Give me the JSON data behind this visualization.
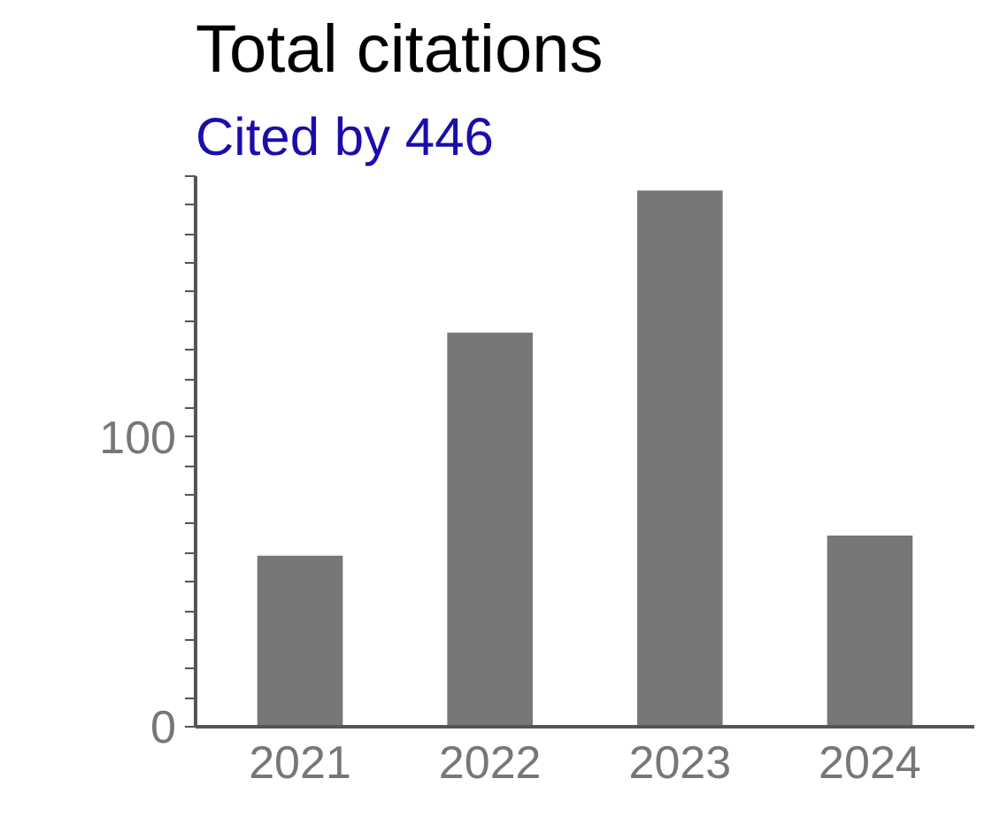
{
  "chart_data": {
    "type": "bar",
    "title": "Total citations",
    "subtitle": "Cited by 446",
    "categories": [
      "2021",
      "2022",
      "2023",
      "2024"
    ],
    "values": [
      59,
      136,
      185,
      66
    ],
    "color": "#777777",
    "ylim": [
      0,
      190
    ],
    "yticks": [
      0,
      {
        "value": 10,
        "label": null
      },
      {
        "value": 20,
        "label": null
      },
      {
        "value": 30,
        "label": null
      },
      {
        "value": 40,
        "label": null
      },
      {
        "value": 50,
        "label": null
      },
      {
        "value": 60,
        "label": null
      },
      {
        "value": 70,
        "label": null
      },
      {
        "value": 80,
        "label": null
      },
      {
        "value": 90,
        "label": null
      },
      100,
      {
        "value": 110,
        "label": null
      },
      {
        "value": 120,
        "label": null
      },
      {
        "value": 130,
        "label": null
      },
      {
        "value": 140,
        "label": null
      },
      {
        "value": 150,
        "label": null
      },
      {
        "value": 160,
        "label": null
      },
      {
        "value": 170,
        "label": null
      },
      {
        "value": 180,
        "label": null
      },
      {
        "value": 190,
        "label": null
      }
    ],
    "grid": false
  }
}
